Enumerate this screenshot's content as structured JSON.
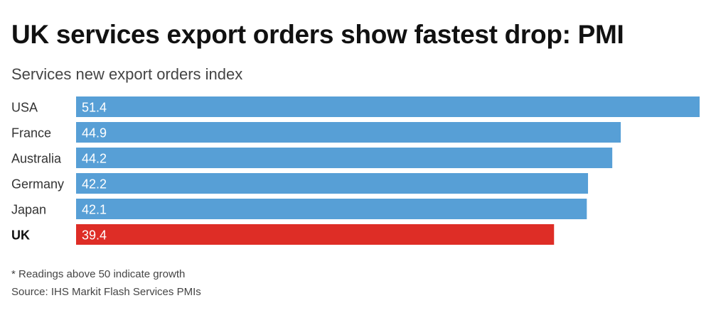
{
  "chart_data": {
    "type": "bar",
    "orientation": "horizontal",
    "title": "UK services export orders show fastest drop: PMI",
    "subtitle": "Services new export orders index",
    "categories": [
      "USA",
      "France",
      "Australia",
      "Germany",
      "Japan",
      "UK"
    ],
    "values": [
      51.4,
      44.9,
      44.2,
      42.2,
      42.1,
      39.4
    ],
    "value_labels": [
      "51.4",
      "44.9",
      "44.2",
      "42.2",
      "42.1",
      "39.4"
    ],
    "highlight": "UK",
    "xlim": [
      0,
      51.4
    ],
    "grid": false,
    "colors": {
      "bar": "#579fd6",
      "highlight": "#de2d26"
    },
    "footnote": "* Readings above 50 indicate growth",
    "source": "Source: IHS Markit Flash Services PMIs"
  }
}
